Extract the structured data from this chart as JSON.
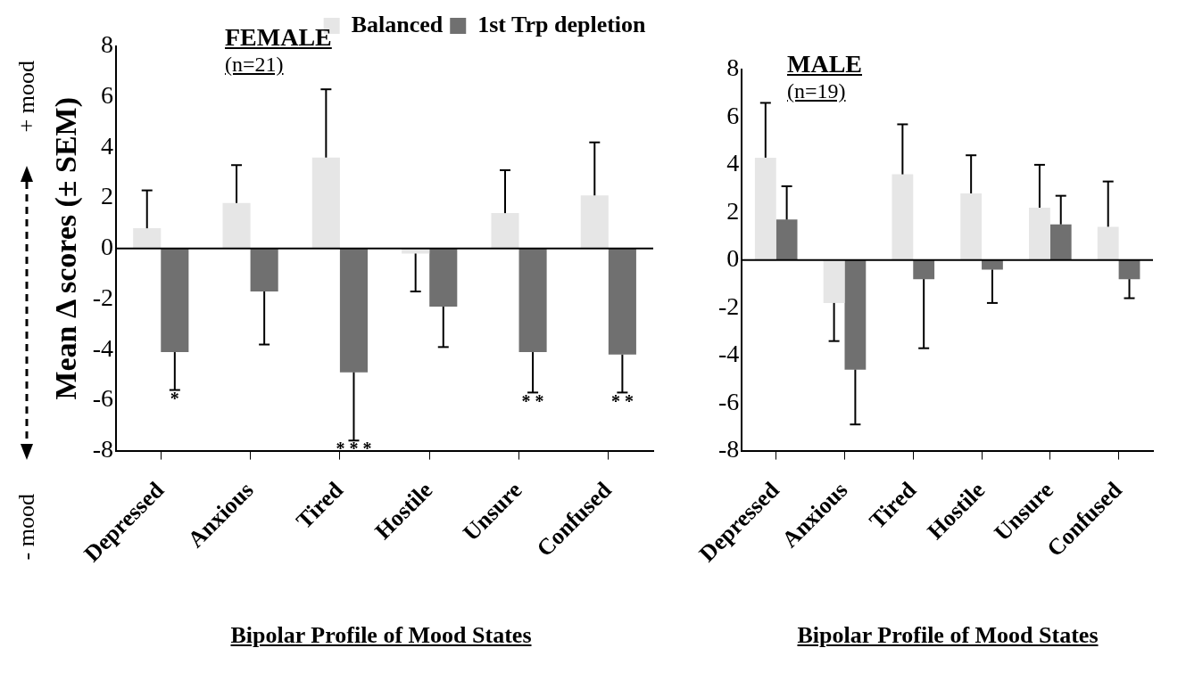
{
  "chart_data": [
    {
      "type": "bar",
      "title": "FEMALE",
      "subtitle": "(n=21)",
      "ylabel": "Mean Δ scores (± SEM)",
      "xlabel": "Bipolar Profile of Mood States",
      "categories": [
        "Depressed",
        "Anxious",
        "Tired",
        "Hostile",
        "Unsure",
        "Confused"
      ],
      "series": [
        {
          "name": "Balanced",
          "color": "#e6e6e6",
          "values": [
            0.8,
            1.8,
            3.6,
            -0.2,
            1.4,
            2.1
          ],
          "errors": [
            [
              0.8,
              2.3
            ],
            [
              1.8,
              3.3
            ],
            [
              3.6,
              6.3
            ],
            [
              -1.7,
              -0.2
            ],
            [
              1.4,
              3.1
            ],
            [
              2.1,
              4.2
            ]
          ]
        },
        {
          "name": "1st Trp depletion",
          "color": "#707070",
          "values": [
            -4.1,
            -1.7,
            -4.9,
            -2.3,
            -4.1,
            -4.2
          ],
          "errors": [
            [
              -5.6,
              -4.1
            ],
            [
              -3.8,
              -1.7
            ],
            [
              -7.6,
              -4.9
            ],
            [
              -3.9,
              -2.3
            ],
            [
              -5.7,
              -4.1
            ],
            [
              -5.7,
              -4.2
            ]
          ]
        }
      ],
      "ylim": [
        -8,
        8
      ],
      "yticks": [
        -8,
        -6,
        -4,
        -2,
        0,
        2,
        4,
        6,
        8
      ],
      "grid": false,
      "legend": "top right",
      "ref_lines": [
        {
          "axis": "y",
          "value": 0
        }
      ],
      "annotations": [
        "+ mood",
        "- mood",
        {
          "text": "*",
          "x": "Depressed",
          "y": -4.1
        },
        "* * *",
        {
          "text": "* *",
          "x": "Unsure",
          "y": -4.1
        },
        {
          "text": "* *",
          "x": "Confused",
          "y": -4.2
        }
      ]
    },
    {
      "type": "bar",
      "title": "MALE",
      "subtitle": "(n=19)",
      "xlabel": "Bipolar Profile of Mood States",
      "categories": [
        "Depressed",
        "Anxious",
        "Tired",
        "Hostile",
        "Unsure",
        "Confused"
      ],
      "series": [
        {
          "color": "#e6e6e6",
          "values": [
            4.3,
            -1.8,
            3.6,
            2.8,
            2.2,
            1.4
          ],
          "errors": [
            [
              4.3,
              6.6
            ],
            [
              -3.4,
              -1.8
            ],
            [
              3.6,
              5.7
            ],
            [
              2.8,
              4.4
            ],
            [
              2.2,
              4.0
            ],
            [
              1.4,
              3.3
            ]
          ]
        },
        {
          "color": "#707070",
          "values": [
            1.7,
            -4.6,
            -0.8,
            -0.4,
            1.5,
            -0.8
          ],
          "errors": [
            [
              1.7,
              3.1
            ],
            [
              -6.9,
              -4.6
            ],
            [
              -3.7,
              -0.8
            ],
            [
              -1.8,
              -0.4
            ],
            [
              1.5,
              2.7
            ],
            [
              -1.6,
              -0.8
            ]
          ]
        }
      ],
      "ylim": [
        -8,
        8
      ],
      "yticks": [
        -8,
        -6,
        -4,
        -2,
        0,
        2,
        4,
        6,
        8
      ],
      "grid": false,
      "legend": false,
      "ref_lines": [
        {
          "axis": "y",
          "value": 0
        }
      ]
    }
  ]
}
